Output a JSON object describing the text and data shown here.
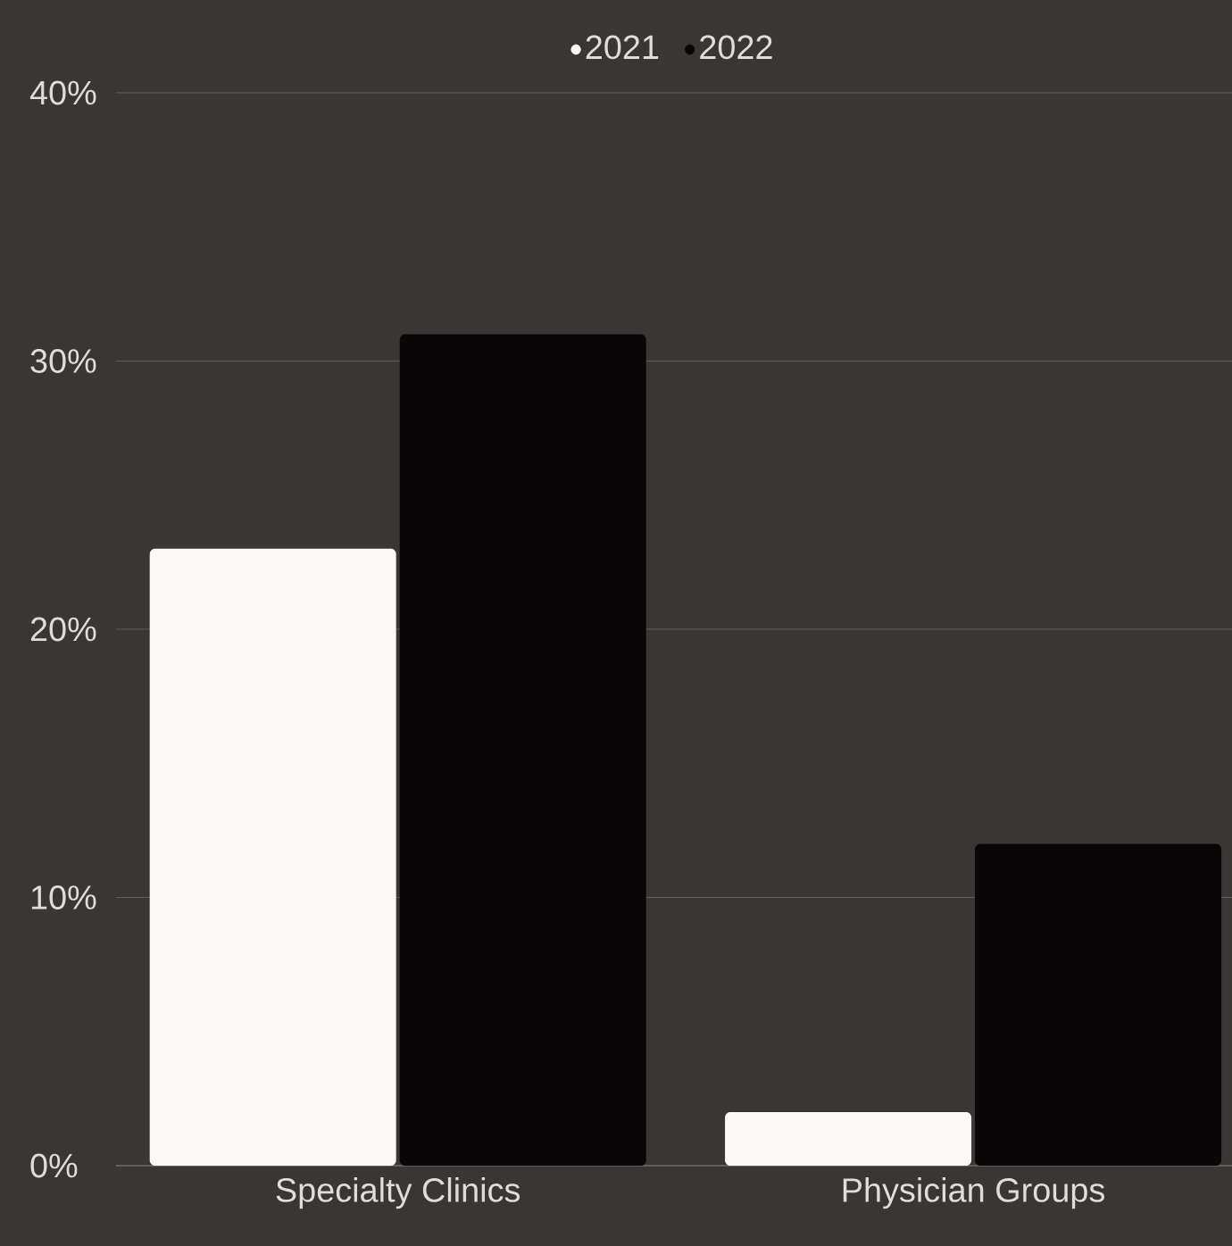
{
  "chart_data": {
    "type": "bar",
    "categories": [
      "Specialty Clinics",
      "Physician Groups"
    ],
    "series": [
      {
        "name": "2021",
        "color": "#fcf8f8",
        "values": [
          23,
          2
        ]
      },
      {
        "name": "2022",
        "color": "#0a0608",
        "values": [
          31,
          12
        ]
      }
    ],
    "ylim": [
      0,
      40
    ],
    "yticks": [
      {
        "value": 0,
        "label": "0%"
      },
      {
        "value": 10,
        "label": "10%"
      },
      {
        "value": 20,
        "label": "20%"
      },
      {
        "value": 30,
        "label": "30%"
      },
      {
        "value": 40,
        "label": "40%"
      }
    ],
    "grid": "y",
    "legend": "top"
  }
}
